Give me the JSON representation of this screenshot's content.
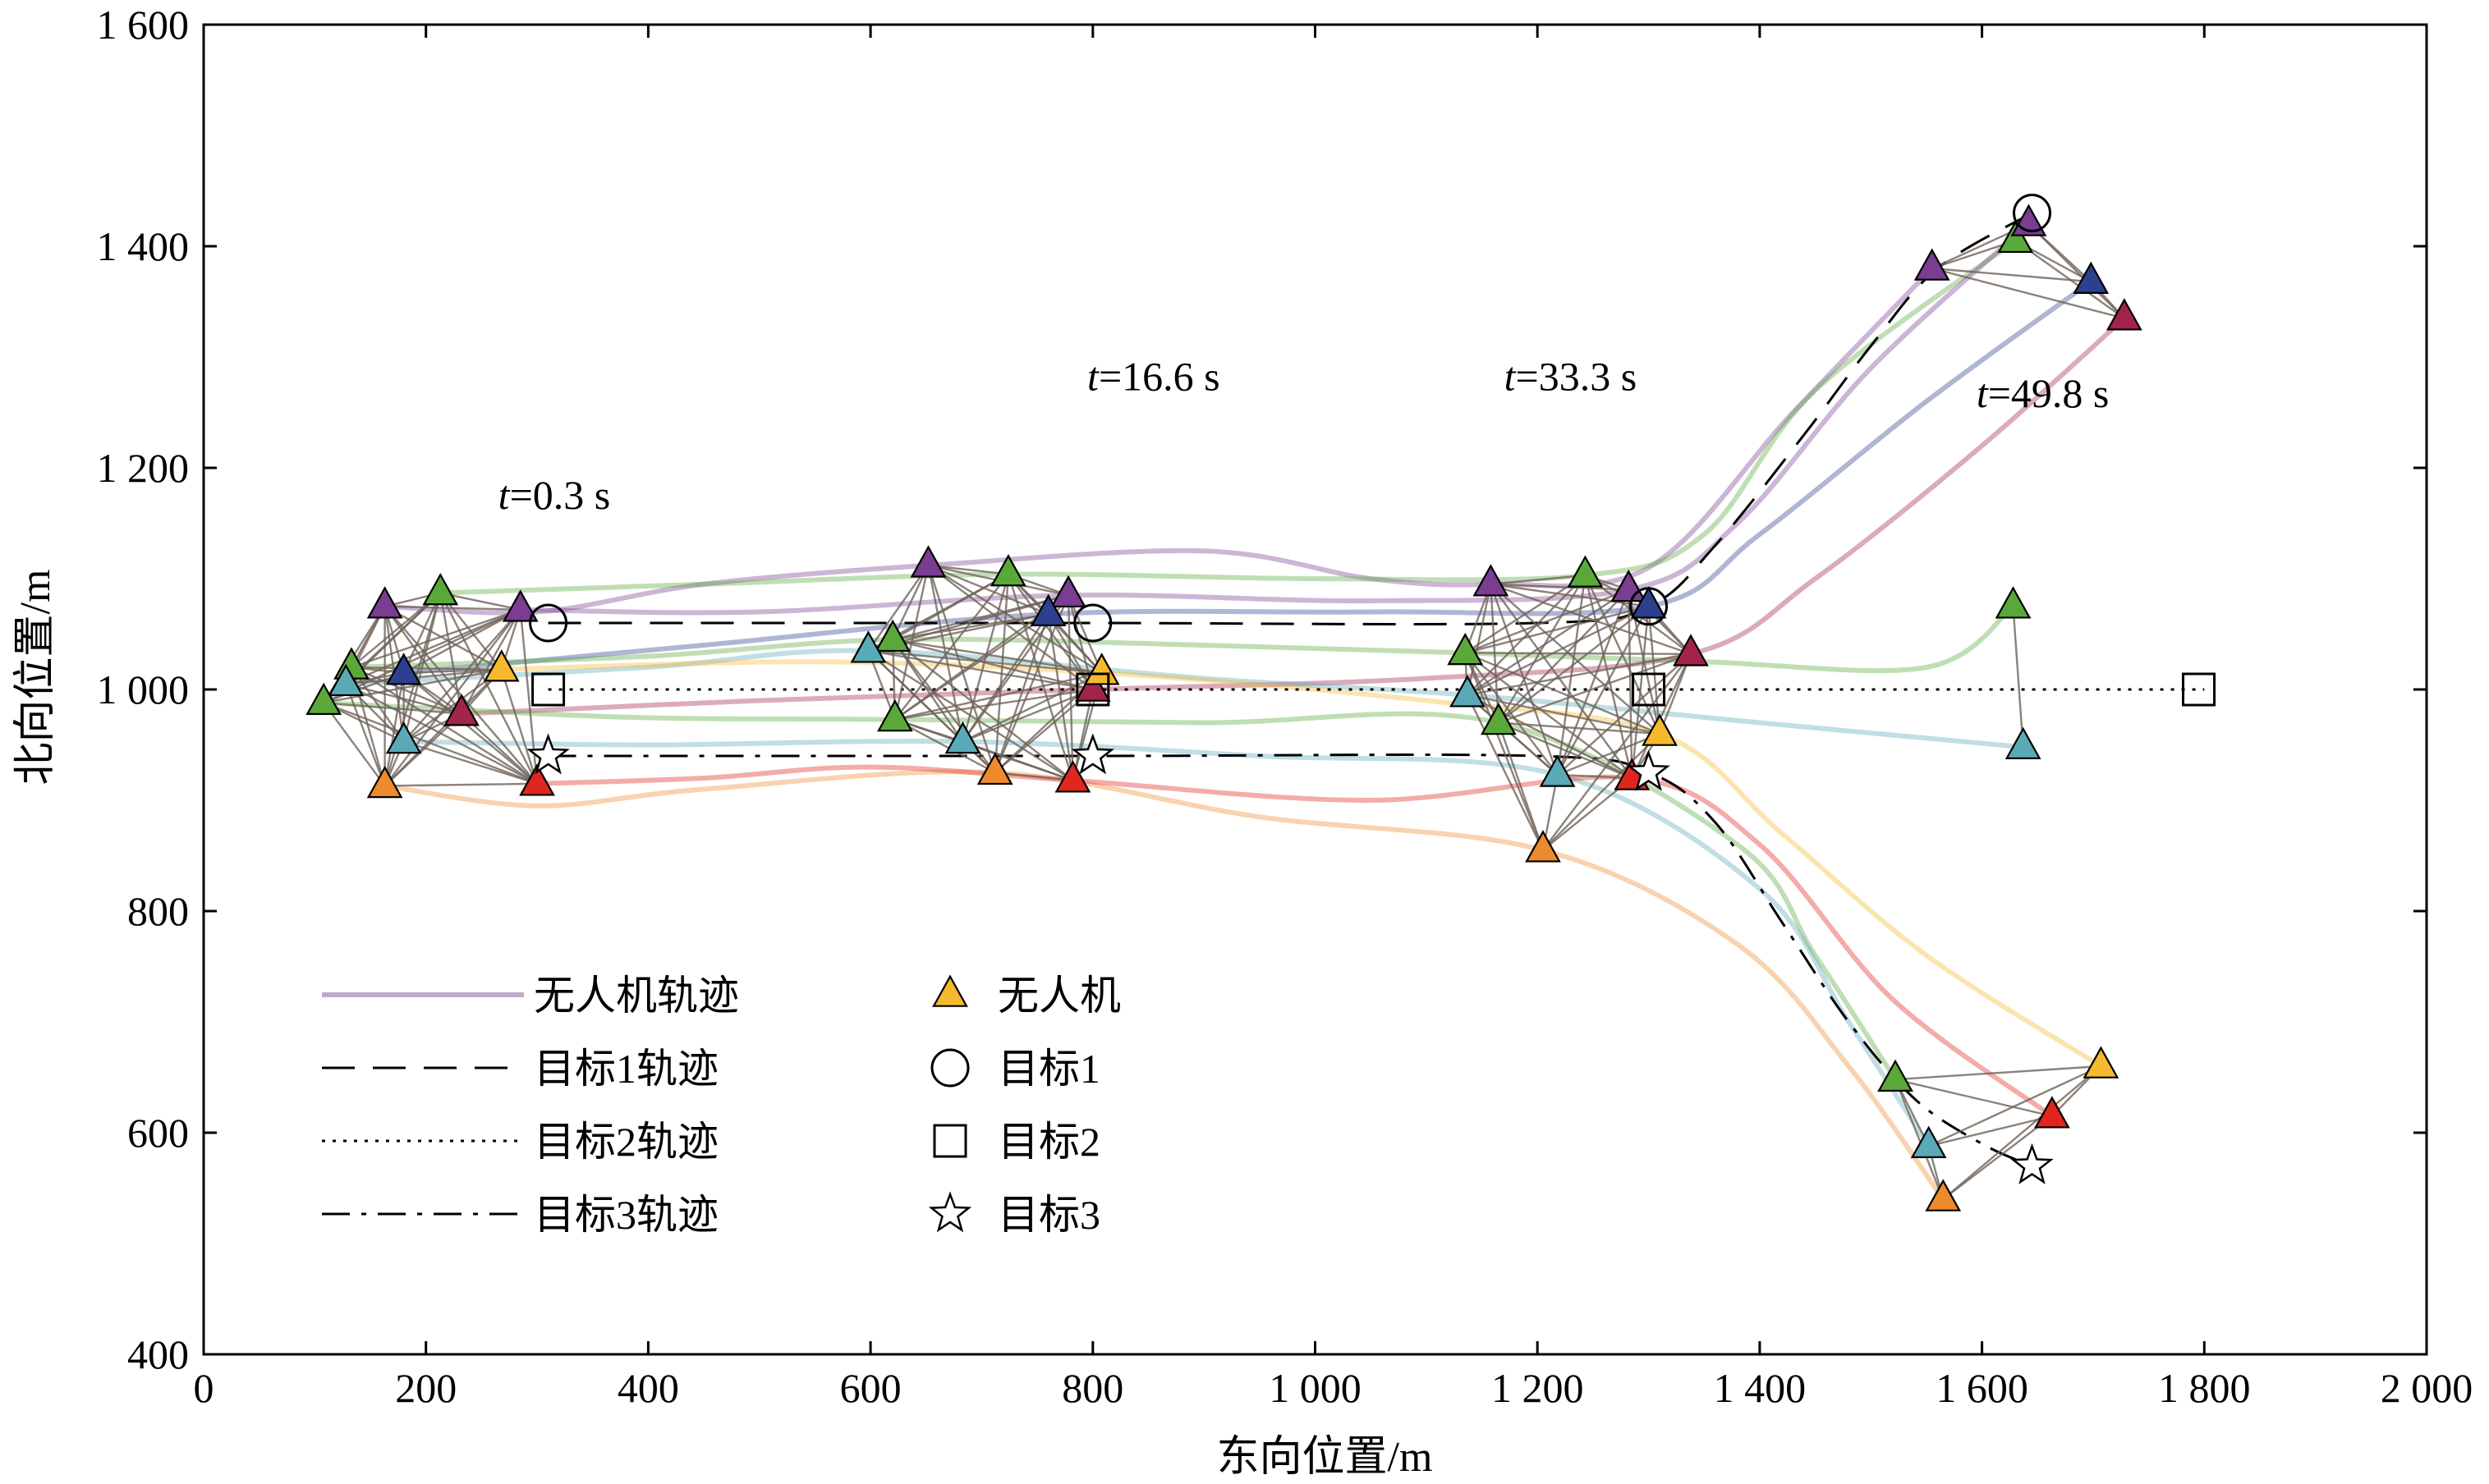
{
  "chart_data": {
    "type": "scatter",
    "title": "",
    "xlabel": "东向位置/m",
    "ylabel": "北向位置/m",
    "xlim": [
      0,
      2000
    ],
    "ylim": [
      400,
      1600
    ],
    "x_ticks": [
      0,
      200,
      400,
      600,
      800,
      1000,
      1200,
      1400,
      1600,
      1800,
      2000
    ],
    "y_ticks": [
      400,
      600,
      800,
      1000,
      1200,
      1400,
      1600
    ],
    "x_tick_labels": [
      "0",
      "200",
      "400",
      "600",
      "800",
      "1 000",
      "1 200",
      "1 400",
      "1 600",
      "1 800",
      "2 000"
    ],
    "y_tick_labels": [
      "400",
      "600",
      "800",
      "1 000",
      "1 200",
      "1 400",
      "1 600"
    ],
    "grid": false,
    "legend_position": "bottom-left",
    "legend": {
      "uav_track": "无人机轨迹",
      "target1_track": "目标1轨迹",
      "target2_track": "目标2轨迹",
      "target3_track": "目标3轨迹",
      "uav": "无人机",
      "target1": "目标1",
      "target2": "目标2",
      "target3": "目标3"
    },
    "time_labels": [
      {
        "t": "0.3",
        "unit": "s",
        "x": 265,
        "y": 1163
      },
      {
        "t": "16.6",
        "unit": "s",
        "x": 795,
        "y": 1270
      },
      {
        "t": "33.3",
        "unit": "s",
        "x": 1170,
        "y": 1270
      },
      {
        "t": "49.8",
        "unit": "s",
        "x": 1595,
        "y": 1255
      }
    ],
    "time_prefix": "t",
    "colors": {
      "purple": "#7a3d91",
      "green": "#5aa83a",
      "navy": "#2d3f8f",
      "crimson": "#a4234a",
      "teal": "#5aa9b7",
      "orange": "#ee8a2e",
      "red": "#e0261f",
      "yellow": "#f5b92e",
      "link": "#6e6359"
    },
    "targets": [
      {
        "name": "目标1",
        "marker": "circle",
        "track_style": "dashed",
        "track": [
          [
            310,
            1060
          ],
          [
            500,
            1060
          ],
          [
            800,
            1060
          ],
          [
            1200,
            1060
          ],
          [
            1300,
            1075
          ],
          [
            1360,
            1130
          ],
          [
            1440,
            1230
          ],
          [
            1500,
            1310
          ],
          [
            1560,
            1380
          ],
          [
            1645,
            1430
          ]
        ],
        "positions": [
          [
            310,
            1060
          ],
          [
            800,
            1060
          ],
          [
            1300,
            1075
          ],
          [
            1645,
            1430
          ]
        ]
      },
      {
        "name": "目标2",
        "marker": "square",
        "track_style": "dotted",
        "track": [
          [
            310,
            1000
          ],
          [
            1800,
            1000
          ]
        ],
        "positions": [
          [
            310,
            1000
          ],
          [
            800,
            1000
          ],
          [
            1300,
            1000
          ],
          [
            1795,
            1000
          ]
        ]
      },
      {
        "name": "目标3",
        "marker": "star",
        "track_style": "dashdot",
        "track": [
          [
            310,
            940
          ],
          [
            800,
            940
          ],
          [
            1200,
            940
          ],
          [
            1300,
            925
          ],
          [
            1360,
            880
          ],
          [
            1420,
            790
          ],
          [
            1480,
            700
          ],
          [
            1540,
            630
          ],
          [
            1600,
            590
          ],
          [
            1645,
            570
          ]
        ],
        "positions": [
          [
            310,
            940
          ],
          [
            800,
            940
          ],
          [
            1300,
            925
          ],
          [
            1645,
            570
          ]
        ]
      }
    ],
    "uavs": [
      {
        "color": "purple",
        "pos": [
          [
            163,
            1075
          ],
          [
            652,
            1112
          ],
          [
            1158,
            1095
          ],
          [
            1555,
            1380
          ]
        ],
        "wp": [
          [
            163,
            1075
          ],
          [
            300,
            1070
          ],
          [
            450,
            1095
          ],
          [
            652,
            1112
          ],
          [
            900,
            1125
          ],
          [
            1050,
            1100
          ],
          [
            1158,
            1095
          ],
          [
            1300,
            1110
          ],
          [
            1430,
            1250
          ],
          [
            1555,
            1380
          ]
        ]
      },
      {
        "color": "green",
        "pos": [
          [
            213,
            1087
          ],
          [
            724,
            1104
          ],
          [
            1243,
            1103
          ],
          [
            1630,
            1405
          ]
        ],
        "wp": [
          [
            213,
            1087
          ],
          [
            450,
            1095
          ],
          [
            724,
            1104
          ],
          [
            1000,
            1100
          ],
          [
            1243,
            1103
          ],
          [
            1350,
            1140
          ],
          [
            1450,
            1270
          ],
          [
            1630,
            1405
          ]
        ]
      },
      {
        "color": "purple",
        "pos": [
          [
            285,
            1072
          ],
          [
            778,
            1085
          ],
          [
            1282,
            1090
          ],
          [
            1642,
            1420
          ]
        ],
        "wp": [
          [
            285,
            1072
          ],
          [
            500,
            1070
          ],
          [
            778,
            1085
          ],
          [
            1050,
            1080
          ],
          [
            1282,
            1090
          ],
          [
            1380,
            1150
          ],
          [
            1500,
            1290
          ],
          [
            1642,
            1420
          ]
        ]
      },
      {
        "color": "navy",
        "pos": [
          [
            180,
            1015
          ],
          [
            760,
            1068
          ],
          [
            1300,
            1075
          ],
          [
            1698,
            1368
          ]
        ],
        "wp": [
          [
            180,
            1015
          ],
          [
            450,
            1040
          ],
          [
            760,
            1068
          ],
          [
            1050,
            1070
          ],
          [
            1300,
            1075
          ],
          [
            1400,
            1140
          ],
          [
            1550,
            1260
          ],
          [
            1698,
            1368
          ]
        ]
      },
      {
        "color": "crimson",
        "pos": [
          [
            232,
            978
          ],
          [
            800,
            1000
          ],
          [
            1338,
            1032
          ],
          [
            1728,
            1335
          ]
        ],
        "wp": [
          [
            232,
            978
          ],
          [
            500,
            990
          ],
          [
            800,
            1000
          ],
          [
            1100,
            1010
          ],
          [
            1338,
            1032
          ],
          [
            1450,
            1100
          ],
          [
            1600,
            1220
          ],
          [
            1728,
            1335
          ]
        ]
      },
      {
        "color": "green",
        "pos": [
          [
            133,
            1020
          ],
          [
            620,
            1045
          ],
          [
            1135,
            1033
          ],
          [
            1628,
            1075
          ]
        ],
        "wp": [
          [
            133,
            1020
          ],
          [
            400,
            1030
          ],
          [
            620,
            1045
          ],
          [
            900,
            1040
          ],
          [
            1135,
            1033
          ],
          [
            1350,
            1025
          ],
          [
            1550,
            1020
          ],
          [
            1628,
            1075
          ]
        ]
      },
      {
        "color": "teal",
        "pos": [
          [
            128,
            1005
          ],
          [
            598,
            1035
          ],
          [
            1137,
            995
          ],
          [
            1637,
            948
          ]
        ],
        "wp": [
          [
            128,
            1005
          ],
          [
            400,
            1020
          ],
          [
            598,
            1035
          ],
          [
            900,
            1010
          ],
          [
            1137,
            995
          ],
          [
            1400,
            970
          ],
          [
            1637,
            948
          ]
        ]
      },
      {
        "color": "yellow",
        "pos": [
          [
            268,
            1018
          ],
          [
            808,
            1015
          ],
          [
            1310,
            960
          ],
          [
            1707,
            660
          ]
        ],
        "wp": [
          [
            268,
            1018
          ],
          [
            550,
            1025
          ],
          [
            808,
            1015
          ],
          [
            1100,
            990
          ],
          [
            1310,
            960
          ],
          [
            1420,
            870
          ],
          [
            1550,
            760
          ],
          [
            1707,
            660
          ]
        ]
      },
      {
        "color": "green",
        "pos": [
          [
            108,
            988
          ],
          [
            622,
            973
          ],
          [
            1165,
            970
          ],
          [
            1522,
            648
          ]
        ],
        "wp": [
          [
            108,
            988
          ],
          [
            380,
            975
          ],
          [
            622,
            973
          ],
          [
            900,
            970
          ],
          [
            1165,
            970
          ],
          [
            1380,
            860
          ],
          [
            1450,
            760
          ],
          [
            1522,
            648
          ]
        ]
      },
      {
        "color": "teal",
        "pos": [
          [
            180,
            953
          ],
          [
            683,
            953
          ],
          [
            1218,
            923
          ],
          [
            1552,
            588
          ]
        ],
        "wp": [
          [
            180,
            953
          ],
          [
            400,
            950
          ],
          [
            683,
            953
          ],
          [
            950,
            940
          ],
          [
            1218,
            923
          ],
          [
            1400,
            820
          ],
          [
            1480,
            700
          ],
          [
            1552,
            588
          ]
        ]
      },
      {
        "color": "orange",
        "pos": [
          [
            163,
            913
          ],
          [
            712,
            925
          ],
          [
            1205,
            855
          ],
          [
            1565,
            540
          ]
        ],
        "wp": [
          [
            163,
            913
          ],
          [
            300,
            895
          ],
          [
            450,
            910
          ],
          [
            712,
            925
          ],
          [
            950,
            885
          ],
          [
            1205,
            855
          ],
          [
            1380,
            770
          ],
          [
            1480,
            660
          ],
          [
            1565,
            540
          ]
        ]
      },
      {
        "color": "red",
        "pos": [
          [
            300,
            915
          ],
          [
            782,
            918
          ],
          [
            1285,
            920
          ],
          [
            1663,
            615
          ]
        ],
        "wp": [
          [
            300,
            915
          ],
          [
            450,
            920
          ],
          [
            600,
            930
          ],
          [
            782,
            918
          ],
          [
            1050,
            900
          ],
          [
            1285,
            920
          ],
          [
            1400,
            860
          ],
          [
            1520,
            720
          ],
          [
            1663,
            615
          ]
        ]
      }
    ]
  }
}
